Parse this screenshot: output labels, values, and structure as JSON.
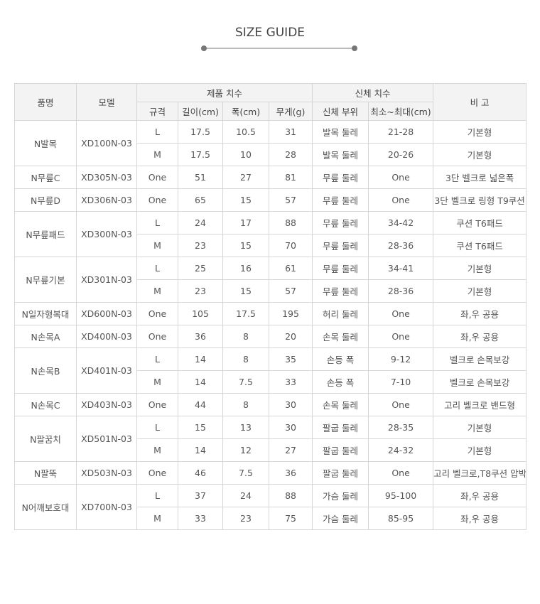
{
  "title": "SIZE GUIDE",
  "headers": {
    "name": "품명",
    "model": "모델",
    "product_dims": "제품 치수",
    "body_dims": "신체 치수",
    "note": "비 고",
    "spec": "규격",
    "length": "길이(cm)",
    "width": "폭(cm)",
    "weight": "무게(g)",
    "part": "신체 부위",
    "range": "최소~최대(cm)"
  },
  "groups": [
    {
      "name": "N발목",
      "model": "XD100N-03",
      "rows": [
        [
          "L",
          "17.5",
          "10.5",
          "31",
          "발목 둘레",
          "21-28",
          "기본형"
        ],
        [
          "M",
          "17.5",
          "10",
          "28",
          "발목 둘레",
          "20-26",
          "기본형"
        ]
      ]
    },
    {
      "name": "N무릎C",
      "model": "XD305N-03",
      "rows": [
        [
          "One",
          "51",
          "27",
          "81",
          "무릎 둘레",
          "One",
          "3단 벨크로 넓은폭"
        ]
      ]
    },
    {
      "name": "N무릎D",
      "model": "XD306N-03",
      "rows": [
        [
          "One",
          "65",
          "15",
          "57",
          "무릎 둘레",
          "One",
          "3단 벨크로 링형 T9쿠션"
        ]
      ]
    },
    {
      "name": "N무릎패드",
      "model": "XD300N-03",
      "rows": [
        [
          "L",
          "24",
          "17",
          "88",
          "무릎 둘레",
          "34-42",
          "쿠션 T6패드"
        ],
        [
          "M",
          "23",
          "15",
          "70",
          "무릎 둘레",
          "28-36",
          "쿠션 T6패드"
        ]
      ]
    },
    {
      "name": "N무릎기본",
      "model": "XD301N-03",
      "rows": [
        [
          "L",
          "25",
          "16",
          "61",
          "무릎 둘레",
          "34-41",
          "기본형"
        ],
        [
          "M",
          "23",
          "15",
          "57",
          "무릎 둘레",
          "28-36",
          "기본형"
        ]
      ]
    },
    {
      "name": "N일자형복대",
      "model": "XD600N-03",
      "rows": [
        [
          "One",
          "105",
          "17.5",
          "195",
          "허리 둘레",
          "One",
          "좌,우 공용"
        ]
      ]
    },
    {
      "name": "N손목A",
      "model": "XD400N-03",
      "rows": [
        [
          "One",
          "36",
          "8",
          "20",
          "손목 둘레",
          "One",
          "좌,우 공용"
        ]
      ]
    },
    {
      "name": "N손목B",
      "model": "XD401N-03",
      "rows": [
        [
          "L",
          "14",
          "8",
          "35",
          "손등 폭",
          "9-12",
          "벨크로 손목보강"
        ],
        [
          "M",
          "14",
          "7.5",
          "33",
          "손등 폭",
          "7-10",
          "벨크로 손목보강"
        ]
      ]
    },
    {
      "name": "N손목C",
      "model": "XD403N-03",
      "rows": [
        [
          "One",
          "44",
          "8",
          "30",
          "손목 둘레",
          "One",
          "고리 벨크로 밴드형"
        ]
      ]
    },
    {
      "name": "N팔꿈치",
      "model": "XD501N-03",
      "rows": [
        [
          "L",
          "15",
          "13",
          "30",
          "팔굽 둘레",
          "28-35",
          "기본형"
        ],
        [
          "M",
          "14",
          "12",
          "27",
          "팔굽 둘레",
          "24-32",
          "기본형"
        ]
      ]
    },
    {
      "name": "N팔뚝",
      "model": "XD503N-03",
      "rows": [
        [
          "One",
          "46",
          "7.5",
          "36",
          "팔굽 둘레",
          "One",
          "고리 벨크로,T8쿠션 압박"
        ]
      ]
    },
    {
      "name": "N어깨보호대",
      "model": "XD700N-03",
      "rows": [
        [
          "L",
          "37",
          "24",
          "88",
          "가슴 둘레",
          "95-100",
          "좌,우 공용"
        ],
        [
          "M",
          "33",
          "23",
          "75",
          "가슴 둘레",
          "85-95",
          "좌,우 공용"
        ]
      ]
    }
  ]
}
